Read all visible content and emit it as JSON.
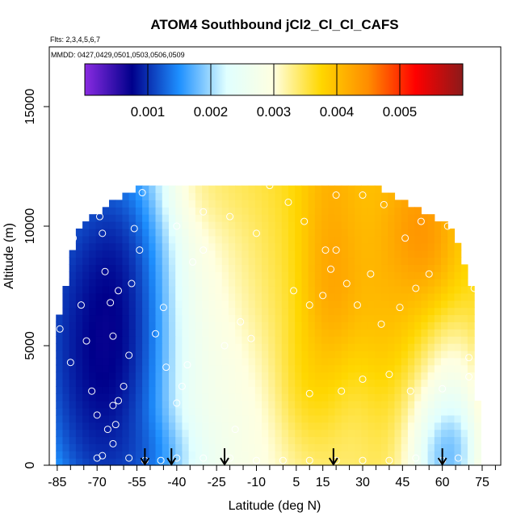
{
  "chart_data": {
    "type": "heatmap",
    "title": "ATOM4 Southbound jCl2_Cl_Cl_CAFS",
    "subtitle_flights": "Flts: 2,3,4,5,6,7",
    "subtitle_dates": "MMDD: 0427,0429,0501,0503,0506,0509",
    "xlabel": "Latitude (deg N)",
    "ylabel": "Altitude (m)",
    "xlim": [
      -88,
      82
    ],
    "ylim": [
      0,
      17500
    ],
    "x_ticks": [
      -85,
      -70,
      -55,
      -40,
      -25,
      -10,
      5,
      15,
      30,
      45,
      60,
      75
    ],
    "x_tick_labels": [
      "-85",
      "-70",
      "-55",
      "-40",
      "-25",
      "-10",
      "5",
      "15",
      "30",
      "45",
      "60",
      "75"
    ],
    "x_minor_ticks": [
      -80,
      -75,
      -65,
      -60,
      -50,
      -45,
      -35,
      -30,
      -20,
      -15,
      -5,
      0,
      10,
      20,
      25,
      35,
      40,
      50,
      55,
      65,
      70,
      80
    ],
    "y_ticks": [
      0,
      5000,
      10000,
      15000
    ],
    "y_tick_labels": [
      "0",
      "5000",
      "10000",
      "15000"
    ],
    "colorbar": {
      "range": [
        0,
        0.006
      ],
      "ticks": [
        0.001,
        0.002,
        0.003,
        0.004,
        0.005
      ],
      "tick_labels": [
        "0.001",
        "0.002",
        "0.003",
        "0.004",
        "0.005"
      ],
      "palette": [
        "#8a2be2",
        "#00008b",
        "#1e90ff",
        "#e0ffff",
        "#ffffe0",
        "#ffd700",
        "#ff8c00",
        "#ff0000",
        "#8b1a1a"
      ]
    },
    "profile_markers_lat": [
      -52,
      -42,
      -22,
      19,
      60
    ],
    "domain_edges": [
      [
        0,
        -85,
        75
      ],
      [
        1000,
        -85,
        75
      ],
      [
        2000,
        -86,
        74
      ],
      [
        3000,
        -86,
        73
      ],
      [
        4000,
        -86,
        73
      ],
      [
        5000,
        -86,
        73
      ],
      [
        6000,
        -85,
        73
      ],
      [
        7000,
        -83,
        72
      ],
      [
        8000,
        -81,
        69
      ],
      [
        9000,
        -79,
        67
      ],
      [
        10000,
        -77,
        62
      ],
      [
        11000,
        -64,
        45
      ],
      [
        11800,
        -50,
        35
      ]
    ],
    "features": [
      [
        -80,
        7000,
        13,
        5000,
        0.00045
      ],
      [
        -62,
        6500,
        9,
        3500,
        0.0001
      ],
      [
        -68,
        3500,
        12,
        3500,
        0.0002
      ],
      [
        -50,
        5000,
        9,
        6000,
        0.0006
      ],
      [
        -52,
        500,
        14,
        1000,
        0.0008
      ],
      [
        -35,
        5500,
        13,
        5000,
        0.0022
      ],
      [
        -22,
        3500,
        14,
        4500,
        0.0026
      ],
      [
        -8,
        1500,
        22,
        2500,
        0.0025
      ],
      [
        -15,
        9500,
        14,
        2500,
        0.0033
      ],
      [
        -25,
        11500,
        12,
        1200,
        0.0037
      ],
      [
        0,
        6000,
        20,
        4500,
        0.0038
      ],
      [
        18,
        8000,
        7,
        3500,
        0.005
      ],
      [
        8,
        3000,
        8,
        1800,
        0.0044
      ],
      [
        25,
        2000,
        9,
        2500,
        0.0033
      ],
      [
        42,
        9500,
        12,
        3000,
        0.0042
      ],
      [
        50,
        9800,
        7,
        1500,
        0.0052
      ],
      [
        40,
        6000,
        10,
        3000,
        0.0044
      ],
      [
        56,
        1500,
        9,
        2500,
        0.0017
      ],
      [
        60,
        600,
        6,
        1200,
        0.0009
      ],
      [
        45,
        3000,
        10,
        3000,
        0.0036
      ],
      [
        30,
        11000,
        25,
        2500,
        0.0039
      ]
    ],
    "background_value": 0.0036,
    "observations": [
      [
        -84,
        5700
      ],
      [
        -79,
        9500
      ],
      [
        -82,
        8600
      ],
      [
        -76,
        6700
      ],
      [
        -80,
        4300
      ],
      [
        -72,
        11100
      ],
      [
        -69,
        10400
      ],
      [
        -68,
        9700
      ],
      [
        -67,
        8100
      ],
      [
        -65,
        6800
      ],
      [
        -62,
        7300
      ],
      [
        -64,
        5400
      ],
      [
        -60,
        3300
      ],
      [
        -62,
        2700
      ],
      [
        -64,
        2500
      ],
      [
        -63,
        1700
      ],
      [
        -66,
        1500
      ],
      [
        -58,
        4600
      ],
      [
        -57,
        7600
      ],
      [
        -54,
        9000
      ],
      [
        -56,
        9900
      ],
      [
        -53,
        11400
      ],
      [
        -48,
        5500
      ],
      [
        -45,
        6600
      ],
      [
        -44,
        4100
      ],
      [
        -40,
        2600
      ],
      [
        -38,
        3300
      ],
      [
        -36,
        4200
      ],
      [
        -34,
        8500
      ],
      [
        -30,
        9000
      ],
      [
        -40,
        10000
      ],
      [
        -30,
        10600
      ],
      [
        -20,
        10400
      ],
      [
        -10,
        9700
      ],
      [
        -22,
        5000
      ],
      [
        -16,
        6000
      ],
      [
        -12,
        5300
      ],
      [
        -18,
        1500
      ],
      [
        -5,
        11700
      ],
      [
        2,
        11000
      ],
      [
        8,
        10200
      ],
      [
        4,
        7300
      ],
      [
        10,
        6700
      ],
      [
        15,
        7100
      ],
      [
        18,
        8200
      ],
      [
        20,
        9000
      ],
      [
        16,
        9000
      ],
      [
        24,
        7600
      ],
      [
        28,
        6700
      ],
      [
        33,
        8000
      ],
      [
        37,
        5900
      ],
      [
        44,
        6600
      ],
      [
        50,
        7400
      ],
      [
        55,
        8000
      ],
      [
        62,
        10000
      ],
      [
        52,
        10200
      ],
      [
        46,
        9500
      ],
      [
        38,
        10900
      ],
      [
        30,
        11300
      ],
      [
        20,
        11300
      ],
      [
        10,
        3000
      ],
      [
        22,
        3100
      ],
      [
        30,
        3600
      ],
      [
        40,
        3800
      ],
      [
        48,
        3100
      ],
      [
        60,
        3200
      ],
      [
        70,
        3700
      ],
      [
        72,
        7400
      ],
      [
        70,
        4500
      ],
      [
        -74,
        5200
      ],
      [
        -72,
        3100
      ],
      [
        -70,
        2100
      ],
      [
        -64,
        900
      ],
      [
        -58,
        300
      ],
      [
        -52,
        200
      ],
      [
        -46,
        200
      ],
      [
        -40,
        300
      ],
      [
        -30,
        300
      ],
      [
        -20,
        300
      ],
      [
        -10,
        200
      ],
      [
        0,
        200
      ],
      [
        10,
        200
      ],
      [
        20,
        200
      ],
      [
        30,
        200
      ],
      [
        40,
        200
      ],
      [
        50,
        300
      ],
      [
        60,
        200
      ],
      [
        66,
        300
      ],
      [
        -70,
        300
      ],
      [
        -68,
        400
      ]
    ],
    "observation_color": "#ffffff"
  }
}
